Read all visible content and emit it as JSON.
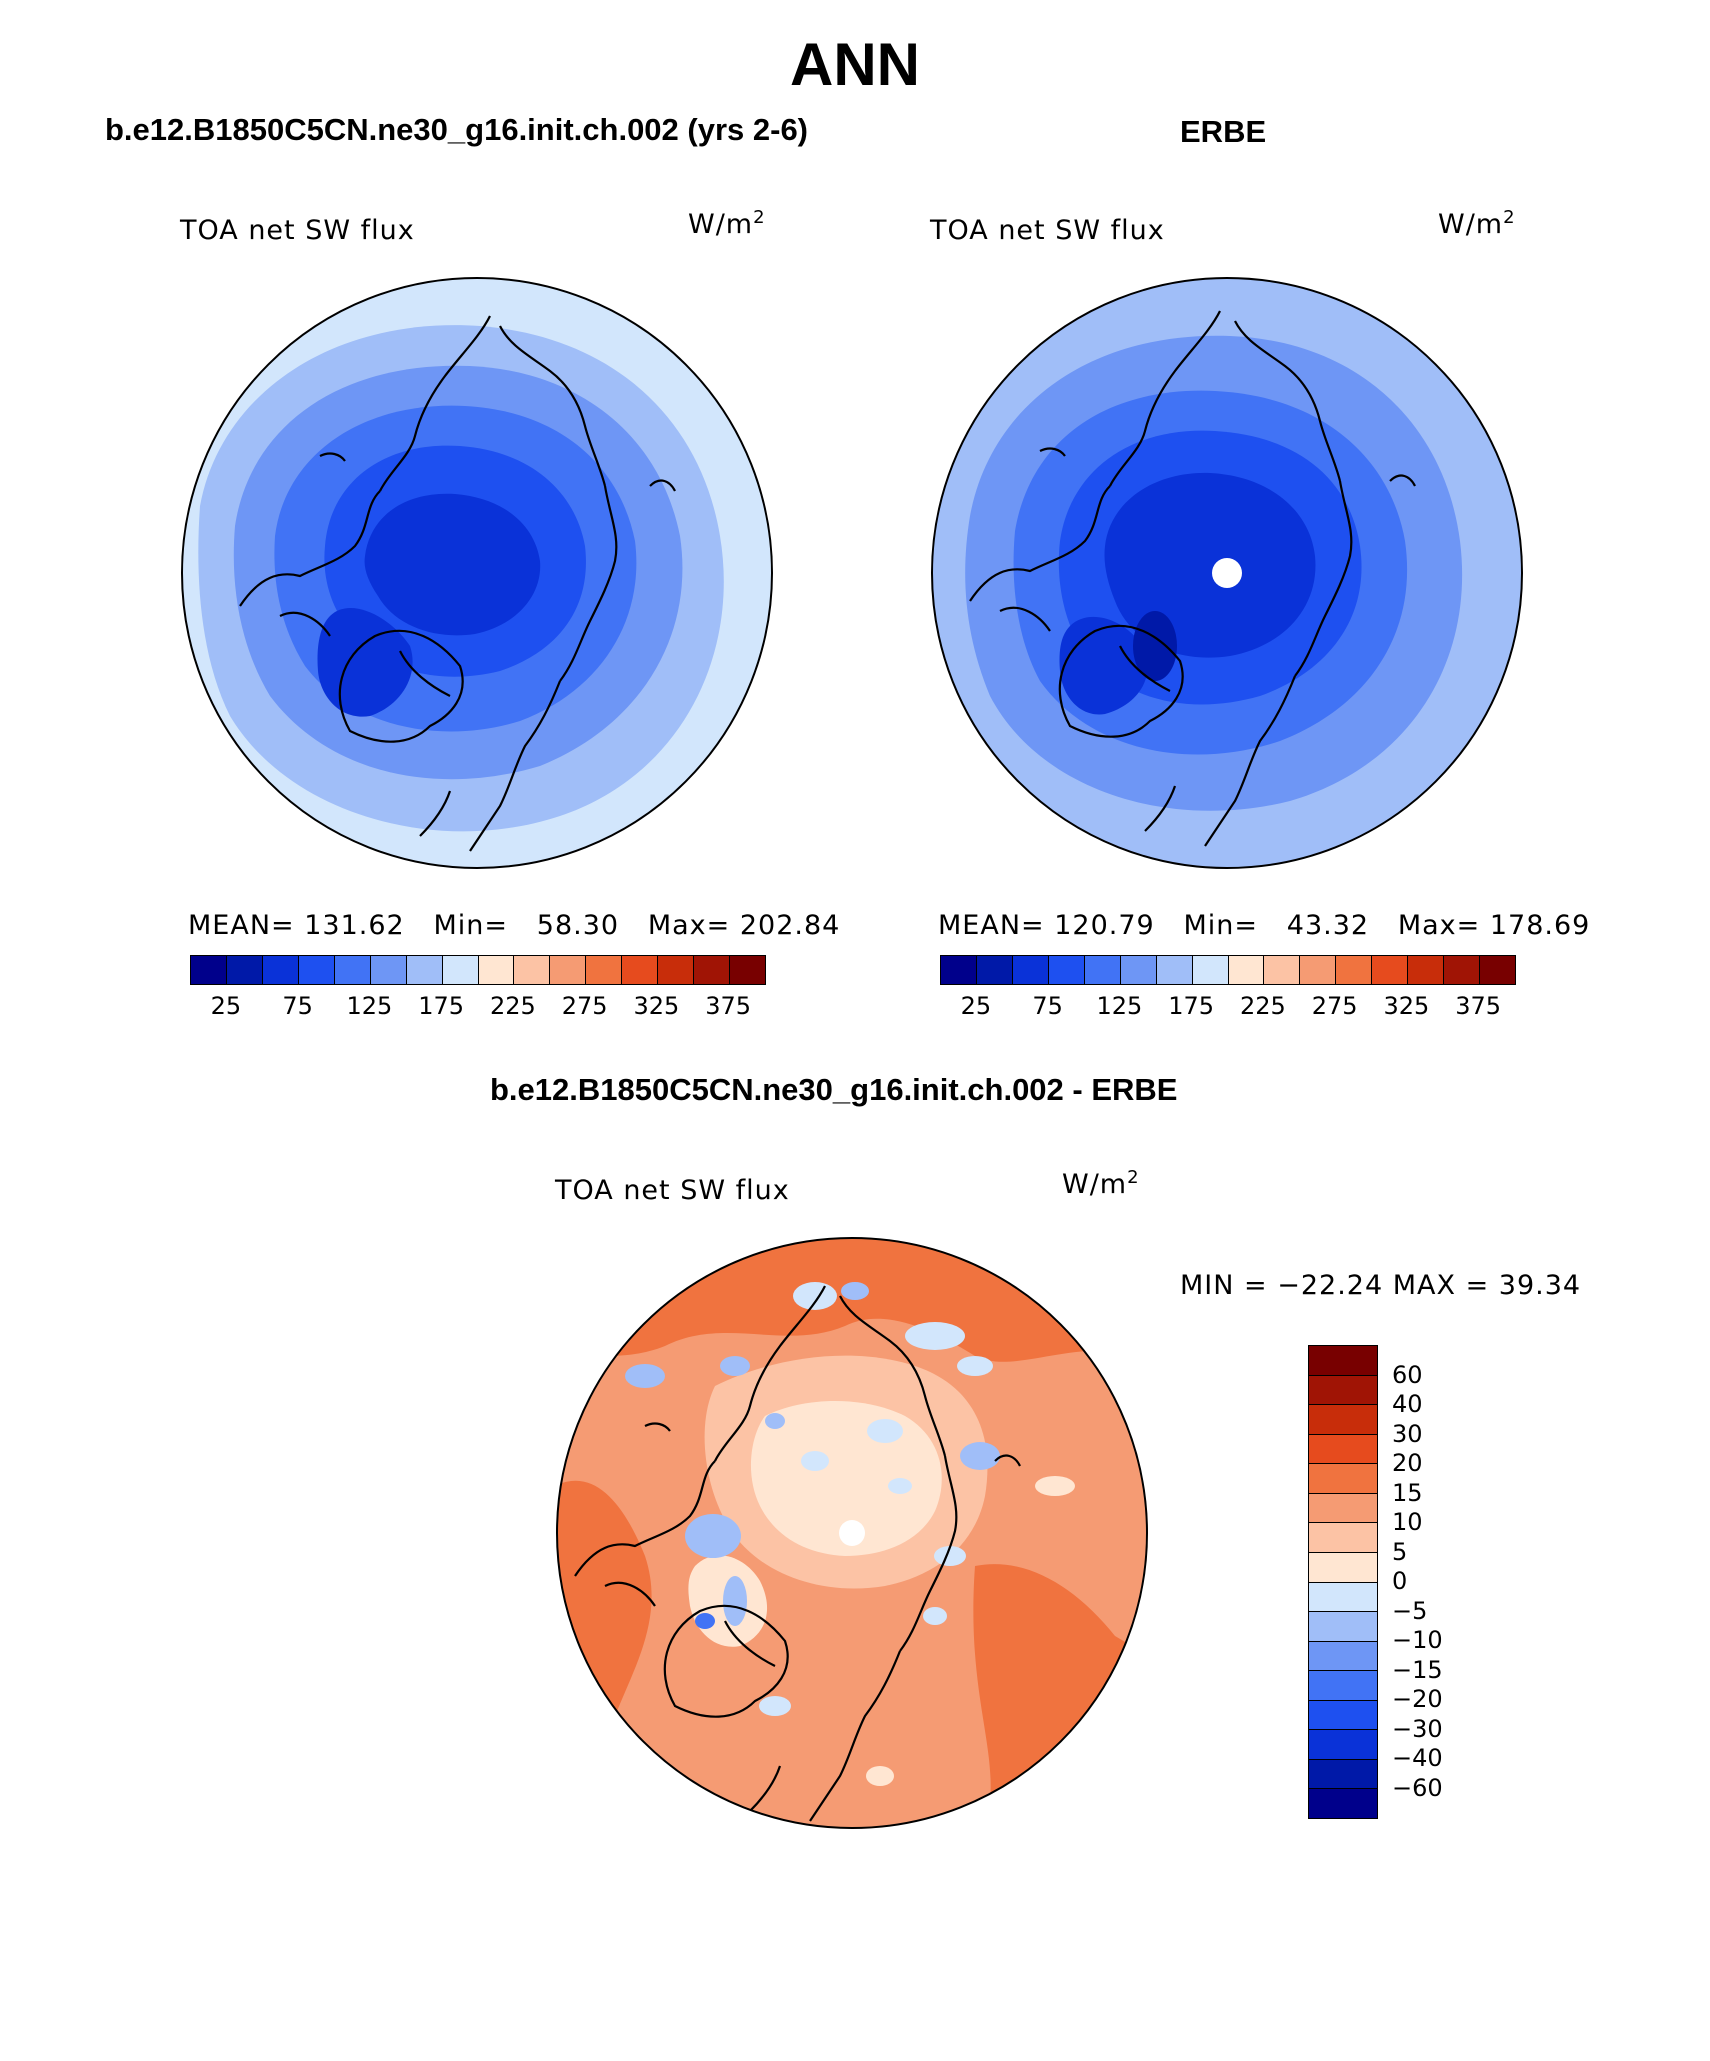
{
  "title": "ANN",
  "panels": {
    "model": {
      "header": "b.e12.B1850C5CN.ne30_g16.init.ch.002 (yrs 2-6)",
      "variable": "TOA net SW flux",
      "units_base": "W/m",
      "units_exp": "2",
      "stats": {
        "mean_label": "MEAN=",
        "mean": "131.62",
        "min_label": "Min=",
        "min": "58.30",
        "max_label": "Max=",
        "max": "202.84"
      }
    },
    "obs": {
      "header": "ERBE",
      "variable": "TOA net SW flux",
      "units_base": "W/m",
      "units_exp": "2",
      "stats": {
        "mean_label": "MEAN=",
        "mean": "120.79",
        "min_label": "Min=",
        "min": "43.32",
        "max_label": "Max=",
        "max": "178.69"
      }
    },
    "diff": {
      "header": "b.e12.B1850C5CN.ne30_g16.init.ch.002 - ERBE",
      "variable": "TOA net SW flux",
      "units_base": "W/m",
      "units_exp": "2",
      "minmax": "MIN = −22.24 MAX =  39.34"
    }
  },
  "colorbar_main": {
    "colors": [
      "#00008b",
      "#0019a8",
      "#0a32d8",
      "#1e50f0",
      "#4173f5",
      "#6e96f5",
      "#a0bef8",
      "#d2e6fc",
      "#ffe6d2",
      "#fcc3a5",
      "#f59b73",
      "#f0733f",
      "#e64b1e",
      "#c82d0a",
      "#a01405",
      "#780000"
    ],
    "labels": [
      "25",
      "75",
      "125",
      "175",
      "225",
      "275",
      "325",
      "375"
    ]
  },
  "colorbar_diff": {
    "colors": [
      "#780000",
      "#a01405",
      "#c82d0a",
      "#e64b1e",
      "#f0733f",
      "#f59b73",
      "#fcc3a5",
      "#ffe6d2",
      "#d2e6fc",
      "#a0bef8",
      "#6e96f5",
      "#4173f5",
      "#1e50f0",
      "#0a32d8",
      "#0019a8",
      "#00008b"
    ],
    "labels": [
      "60",
      "40",
      "30",
      "20",
      "15",
      "10",
      "5",
      "0",
      "−5",
      "−10",
      "−15",
      "−20",
      "−30",
      "−40",
      "−60"
    ]
  }
}
